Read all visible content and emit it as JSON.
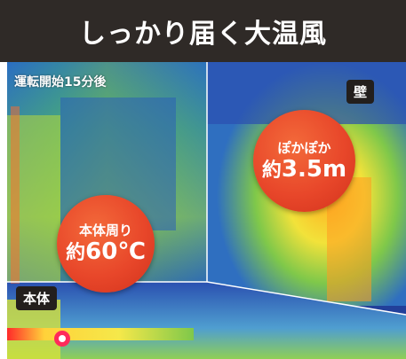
{
  "header": {
    "title": "しっかり届く大温風"
  },
  "caption": "運転開始15分後",
  "labels": {
    "wall": "壁",
    "body": "本体"
  },
  "bubbles": {
    "around_body": {
      "line1": "本体周り",
      "prefix": "約",
      "value": "60℃"
    },
    "distance": {
      "line1": "ぽかぽか",
      "prefix": "約",
      "value": "3.5m"
    }
  },
  "colors": {
    "header_bg": "#2f2a27",
    "bubble": "#e8472a",
    "label_bg": "#231f1d"
  }
}
